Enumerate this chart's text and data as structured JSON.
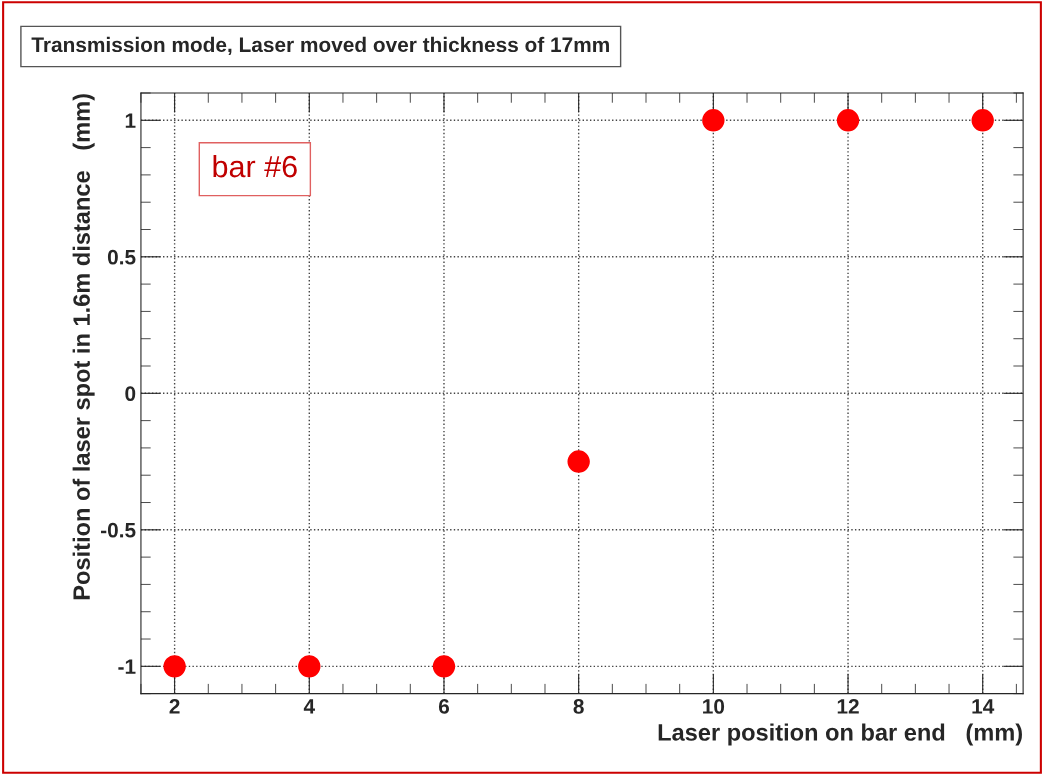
{
  "chart_data": {
    "type": "scatter",
    "title": "Transmission mode, Laser moved over thickness of 17mm",
    "xlabel": "Laser position on bar end   (mm)",
    "ylabel": "Position of laser spot in 1.6m distance   (mm)",
    "x": [
      2,
      4,
      6,
      8,
      10,
      12,
      14
    ],
    "series": [
      {
        "color": "#ff0000",
        "values": [
          -1,
          -1,
          -1,
          -0.25,
          1,
          1,
          1
        ]
      }
    ],
    "xlim": [
      1.5,
      14.6
    ],
    "ylim": [
      -1.1,
      1.1
    ],
    "xticks": [
      2,
      4,
      6,
      8,
      10,
      12,
      14
    ],
    "yticks": [
      -1,
      -0.5,
      0,
      0.5,
      1
    ],
    "grid": true,
    "marker": "circle",
    "legend": false,
    "annotations": [
      "bar #6"
    ]
  }
}
